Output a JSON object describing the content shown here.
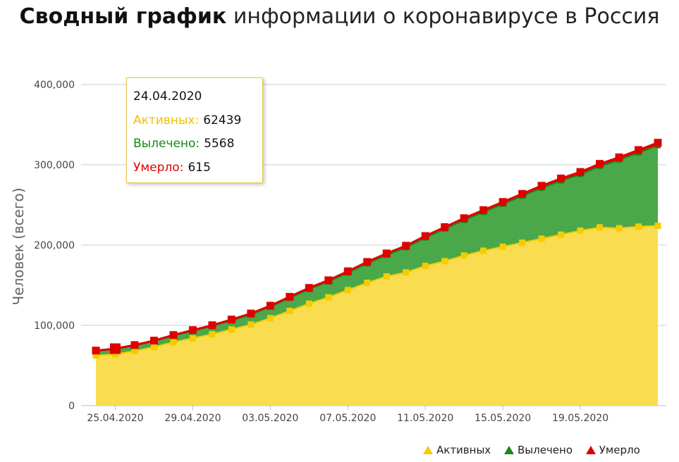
{
  "title": {
    "bold": "Сводный график",
    "rest": "информации о коронавирусе в Россия"
  },
  "colors": {
    "active": "#f5cc00",
    "active_fill": "#f9dc4f",
    "recovered": "#1a8a1a",
    "recovered_fill": "#4aa84a",
    "died": "#e00000"
  },
  "tooltip": {
    "date": "24.04.2020",
    "active_label": "Активных:",
    "active_value": "62439",
    "recovered_label": "Вылечено:",
    "recovered_value": "5568",
    "died_label": "Умерло:",
    "died_value": "615"
  },
  "legend": {
    "active": "Активных",
    "recovered": "Вылечено",
    "died": "Умерло"
  },
  "chart_data": {
    "type": "area",
    "stacked": true,
    "ylabel": "Человек (всего)",
    "ylim": [
      0,
      400000
    ],
    "y_ticks": [
      "0",
      "100,000",
      "200,000",
      "300,000",
      "400,000"
    ],
    "x_tick_labels": [
      "25.04.2020",
      "29.04.2020",
      "03.05.2020",
      "07.05.2020",
      "11.05.2020",
      "15.05.2020",
      "19.05.2020"
    ],
    "x_tick_positions": [
      1,
      5,
      9,
      13,
      17,
      21,
      25
    ],
    "x": [
      "24.04.2020",
      "25.04.2020",
      "26.04.2020",
      "27.04.2020",
      "28.04.2020",
      "29.04.2020",
      "30.04.2020",
      "01.05.2020",
      "02.05.2020",
      "03.05.2020",
      "04.05.2020",
      "05.05.2020",
      "06.05.2020",
      "07.05.2020",
      "08.05.2020",
      "09.05.2020",
      "10.05.2020",
      "11.05.2020",
      "12.05.2020",
      "13.05.2020",
      "14.05.2020",
      "15.05.2020",
      "16.05.2020",
      "17.05.2020",
      "18.05.2020",
      "19.05.2020",
      "20.05.2020",
      "21.05.2020",
      "22.05.2020",
      "23.05.2020"
    ],
    "series": [
      {
        "name": "Активных",
        "values": [
          62439,
          64000,
          68000,
          73000,
          79000,
          84000,
          89000,
          95000,
          101000,
          109000,
          118000,
          127000,
          135000,
          144000,
          153000,
          161000,
          166000,
          174000,
          180000,
          187000,
          193000,
          198000,
          203000,
          208000,
          213000,
          218000,
          222000,
          221000,
          223000,
          224000
        ]
      },
      {
        "name": "Вылечено",
        "values": [
          5568,
          6300,
          6700,
          7100,
          8000,
          9000,
          10000,
          11000,
          12400,
          14000,
          16000,
          18000,
          19400,
          21500,
          24000,
          26500,
          31000,
          35000,
          40000,
          44000,
          48000,
          53000,
          58000,
          63000,
          67000,
          70000,
          76000,
          85000,
          92000,
          100000
        ]
      },
      {
        "name": "Умерло",
        "values": [
          615,
          700,
          800,
          900,
          1000,
          1100,
          1200,
          1300,
          1400,
          1500,
          1600,
          1700,
          1800,
          1900,
          2000,
          2100,
          2200,
          2300,
          2400,
          2500,
          2600,
          2700,
          2800,
          2900,
          3000,
          3100,
          3200,
          3300,
          3400,
          3500
        ]
      }
    ]
  }
}
